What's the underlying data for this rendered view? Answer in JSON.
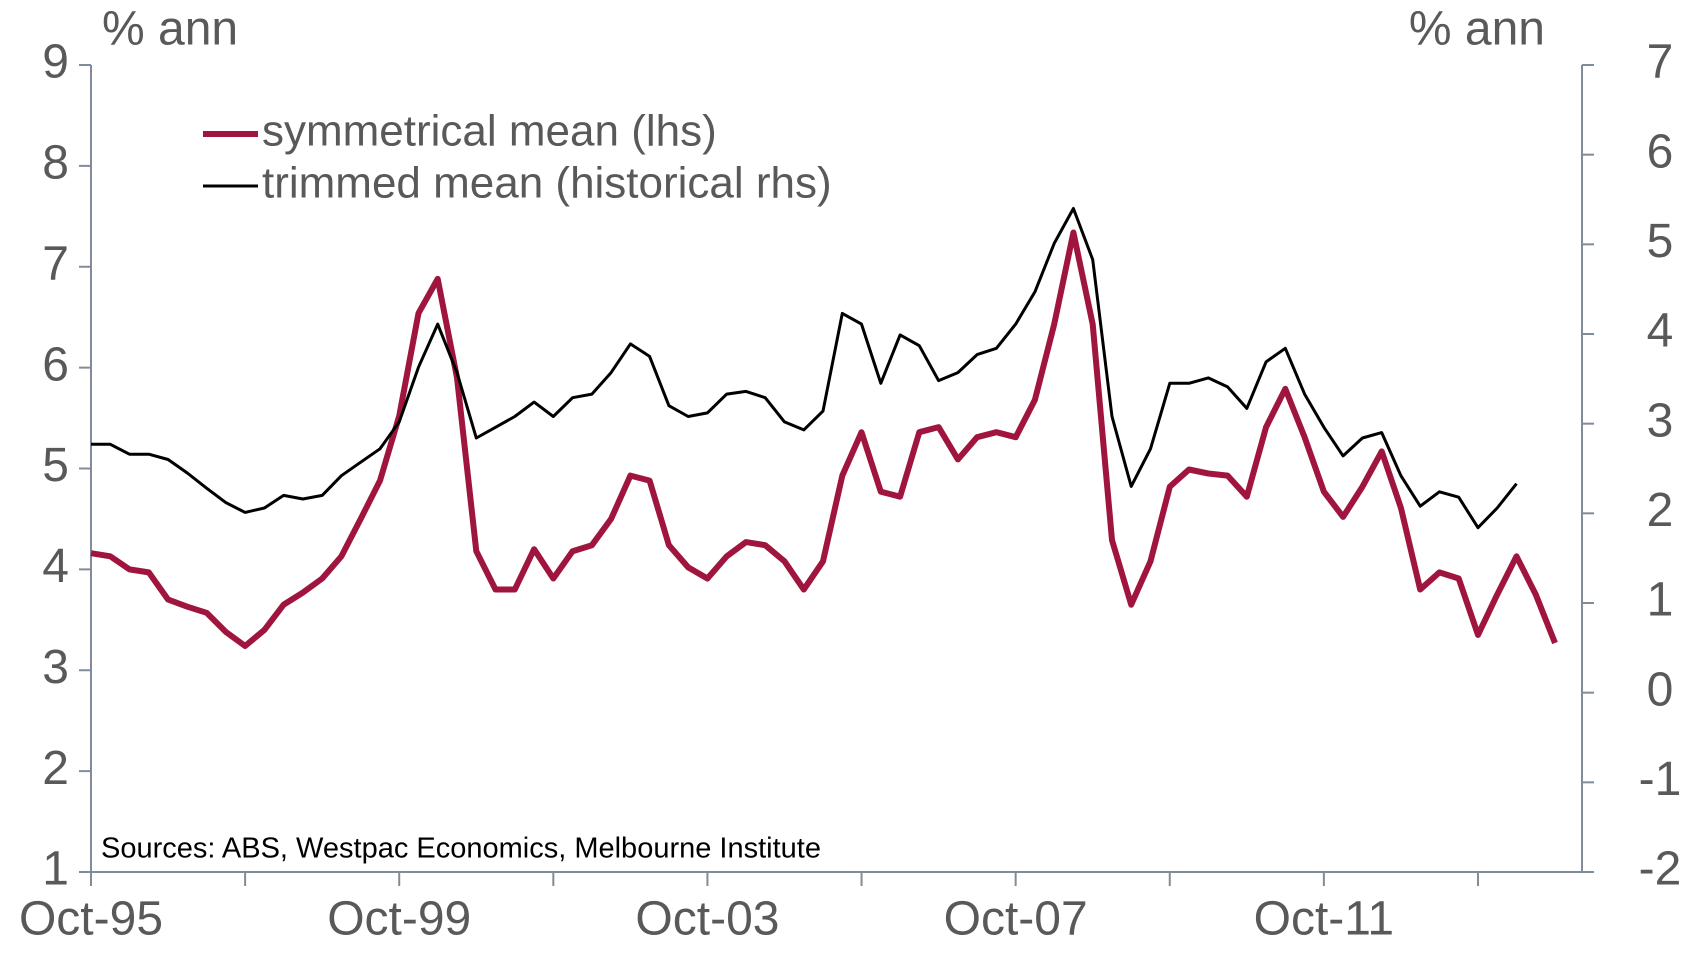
{
  "chart_data": {
    "type": "line",
    "y_label": "% ann",
    "y2_label": "% ann",
    "annotation": "Sources: ABS, Westpac Economics, Melbourne Institute",
    "categories": [
      "Oct-95",
      null,
      null,
      null,
      null,
      null,
      null,
      null,
      null,
      null,
      null,
      null,
      null,
      null,
      null,
      null,
      "Oct-99",
      null,
      null,
      null,
      null,
      null,
      null,
      null,
      null,
      null,
      null,
      null,
      null,
      null,
      null,
      null,
      "Oct-03",
      null,
      null,
      null,
      null,
      null,
      null,
      null,
      null,
      null,
      null,
      null,
      null,
      null,
      null,
      null,
      "Oct-07",
      null,
      null,
      null,
      null,
      null,
      null,
      null,
      null,
      null,
      null,
      null,
      null,
      null,
      null,
      null,
      "Oct-11",
      null,
      null,
      null,
      null,
      null,
      null,
      null,
      null,
      null,
      null,
      null,
      null,
      null
    ],
    "series": [
      {
        "name": "symmetrical mean (lhs)",
        "color": "#a0153e",
        "axis": "y",
        "values": [
          4.16,
          4.13,
          4.0,
          3.97,
          3.7,
          3.63,
          3.57,
          3.38,
          3.24,
          3.4,
          3.65,
          3.77,
          3.91,
          4.13,
          4.5,
          4.88,
          5.52,
          6.54,
          6.88,
          5.9,
          4.18,
          3.8,
          3.8,
          4.2,
          3.91,
          4.18,
          4.24,
          4.5,
          4.93,
          4.88,
          4.24,
          4.02,
          3.91,
          4.13,
          4.27,
          4.24,
          4.08,
          3.8,
          4.08,
          4.93,
          5.36,
          4.77,
          4.72,
          5.36,
          5.41,
          5.09,
          5.31,
          5.36,
          5.31,
          5.68,
          6.43,
          7.34,
          6.43,
          4.29,
          3.65,
          4.08,
          4.82,
          4.99,
          4.95,
          4.93,
          4.72,
          5.41,
          5.79,
          5.31,
          4.77,
          4.52,
          4.82,
          5.17,
          4.61,
          3.8,
          3.97,
          3.91,
          3.35,
          3.75,
          4.13,
          3.75,
          3.27,
          null
        ]
      },
      {
        "name": "trimmed mean (historical rhs)",
        "color": "#000000",
        "axis": "y2",
        "values": [
          2.77,
          2.77,
          2.66,
          2.66,
          2.6,
          2.45,
          2.28,
          2.12,
          2.01,
          2.06,
          2.2,
          2.16,
          2.2,
          2.42,
          2.57,
          2.72,
          3.02,
          3.63,
          4.11,
          3.57,
          2.84,
          2.96,
          3.08,
          3.24,
          3.08,
          3.29,
          3.33,
          3.57,
          3.89,
          3.75,
          3.2,
          3.08,
          3.12,
          3.33,
          3.36,
          3.29,
          3.02,
          2.93,
          3.14,
          4.23,
          4.11,
          3.45,
          3.99,
          3.87,
          3.48,
          3.57,
          3.77,
          3.84,
          4.11,
          4.47,
          5.01,
          5.4,
          4.83,
          3.08,
          2.3,
          2.72,
          3.45,
          3.45,
          3.51,
          3.41,
          3.17,
          3.69,
          3.84,
          3.33,
          2.96,
          2.64,
          2.84,
          2.9,
          2.42,
          2.08,
          2.24,
          2.18,
          1.84,
          2.06,
          2.33,
          null,
          null,
          null
        ]
      }
    ],
    "ylim": [
      1,
      9
    ],
    "yticks": [
      1,
      2,
      3,
      4,
      5,
      6,
      7,
      8,
      9
    ],
    "y2lim": [
      -2,
      7
    ],
    "y2ticks": [
      -2,
      -1,
      0,
      1,
      2,
      3,
      4,
      5,
      6,
      7
    ],
    "legend": "upper left",
    "grid": false
  }
}
